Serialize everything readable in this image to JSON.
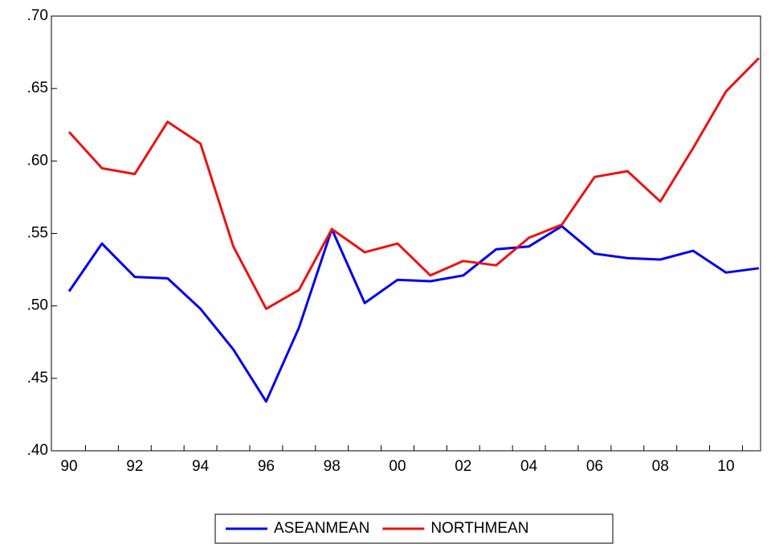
{
  "chart_data": {
    "type": "line",
    "categories": [
      "90",
      null,
      "92",
      null,
      "94",
      null,
      "96",
      null,
      "98",
      null,
      "00",
      null,
      "02",
      null,
      "04",
      null,
      "06",
      null,
      "08",
      null,
      "10",
      null
    ],
    "series": [
      {
        "name": "ASEANMEAN",
        "color": "#0000ee",
        "values": [
          0.51,
          0.543,
          0.52,
          0.519,
          0.498,
          0.47,
          0.434,
          0.485,
          0.553,
          0.502,
          0.518,
          0.517,
          0.521,
          0.539,
          0.541,
          0.555,
          0.536,
          0.533,
          0.532,
          0.538,
          0.523,
          0.526
        ]
      },
      {
        "name": "NORTHMEAN",
        "color": "#ee1111",
        "values": [
          0.62,
          0.595,
          0.591,
          0.627,
          0.612,
          0.541,
          0.498,
          0.511,
          0.553,
          0.537,
          0.543,
          0.521,
          0.531,
          0.528,
          0.547,
          0.556,
          0.589,
          0.593,
          0.572,
          0.609,
          0.648,
          0.671
        ]
      }
    ],
    "ylim": [
      0.4,
      0.7
    ],
    "yticks": [
      {
        "value": 0.4,
        "label": ".40"
      },
      {
        "value": 0.45,
        "label": ".45"
      },
      {
        "value": 0.5,
        "label": ".50"
      },
      {
        "value": 0.55,
        "label": ".55"
      },
      {
        "value": 0.6,
        "label": ".60"
      },
      {
        "value": 0.65,
        "label": ".65"
      },
      {
        "value": 0.7,
        "label": ".70"
      }
    ],
    "grid": false,
    "legend": "bottom"
  }
}
